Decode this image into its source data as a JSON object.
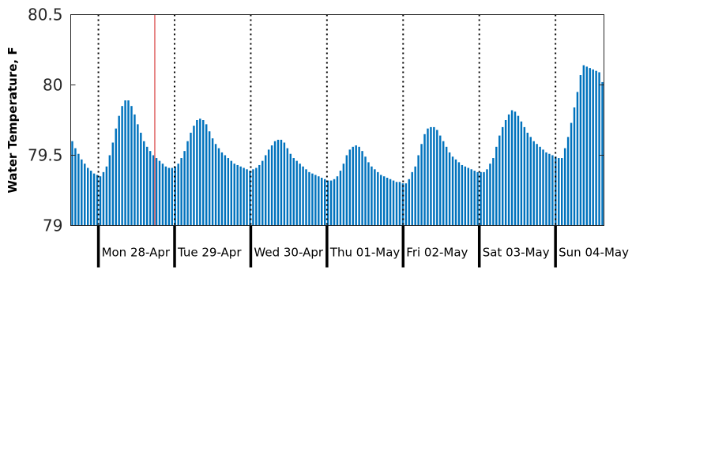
{
  "chart_data": {
    "type": "bar",
    "title": "",
    "xlabel": "",
    "ylabel": "Water Temperature, F",
    "ylim": [
      79,
      80.5
    ],
    "yticks": [
      "79",
      "79.5",
      "80",
      "80.5"
    ],
    "days": [
      "Mon 28-Apr",
      "Tue 29-Apr",
      "Wed 30-Apr",
      "Thu 01-May",
      "Fri 02-May",
      "Sat 03-May",
      "Sun 04-May"
    ],
    "series": [
      {
        "values": [
          79.6,
          79.55,
          79.51,
          79.47,
          79.44,
          79.41,
          79.39,
          79.37,
          79.36,
          79.35,
          79.38,
          79.42,
          79.5,
          79.59,
          79.69,
          79.78,
          79.85,
          79.89,
          79.89,
          79.85,
          79.79,
          79.72,
          79.66,
          79.6,
          79.56,
          79.53,
          79.5,
          79.48,
          79.46,
          79.44,
          79.42,
          79.41,
          79.41,
          79.42,
          79.44,
          79.48,
          79.53,
          79.6,
          79.66,
          79.71,
          79.75,
          79.76,
          79.75,
          79.72,
          79.67,
          79.62,
          79.58,
          79.55,
          79.52,
          79.5,
          79.48,
          79.46,
          79.44,
          79.43,
          79.42,
          79.41,
          79.4,
          79.39,
          79.4,
          79.41,
          79.43,
          79.46,
          79.5,
          79.54,
          79.57,
          79.6,
          79.61,
          79.61,
          79.59,
          79.55,
          79.51,
          79.48,
          79.46,
          79.44,
          79.42,
          79.4,
          79.38,
          79.37,
          79.36,
          79.35,
          79.34,
          79.33,
          79.32,
          79.32,
          79.33,
          79.35,
          79.39,
          79.44,
          79.5,
          79.54,
          79.56,
          79.57,
          79.56,
          79.53,
          79.49,
          79.45,
          79.42,
          79.4,
          79.38,
          79.36,
          79.35,
          79.34,
          79.33,
          79.32,
          79.31,
          79.31,
          79.3,
          79.3,
          79.33,
          79.38,
          79.42,
          79.5,
          79.58,
          79.65,
          79.69,
          79.7,
          79.7,
          79.68,
          79.64,
          79.6,
          79.56,
          79.52,
          79.49,
          79.47,
          79.45,
          79.43,
          79.42,
          79.41,
          79.4,
          79.39,
          79.38,
          79.38,
          79.38,
          79.4,
          79.44,
          79.48,
          79.56,
          79.64,
          79.7,
          79.75,
          79.79,
          79.82,
          79.81,
          79.78,
          79.74,
          79.7,
          79.66,
          79.63,
          79.6,
          79.58,
          79.56,
          79.54,
          79.52,
          79.51,
          79.5,
          79.49,
          79.48,
          79.48,
          79.55,
          79.63,
          79.73,
          79.84,
          79.95,
          80.07,
          80.14,
          80.13,
          80.12,
          80.11,
          80.1,
          80.09,
          80.02
        ]
      }
    ],
    "cursor_x_fraction": 0.1577,
    "colors": {
      "bar": "#0072bd",
      "cursor": "#e06666",
      "axis": "#262626",
      "grid": "#000000"
    },
    "grid": "vertical dotted day separators"
  }
}
